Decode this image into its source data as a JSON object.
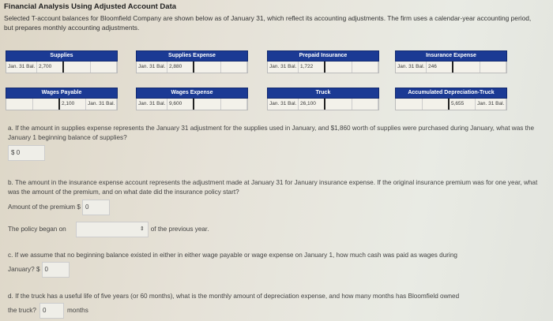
{
  "title": "Financial Analysis Using Adjusted Account Data",
  "intro": "Selected T-account balances for Bloomfield Company are shown below as of January 31, which reflect its accounting adjustments. The firm uses a calendar-year accounting period, but prepares monthly accounting adjustments.",
  "accounts": [
    {
      "name": "Supplies",
      "label": "Jan. 31 Bal.",
      "value": "2,700",
      "side": "debit"
    },
    {
      "name": "Supplies Expense",
      "label": "Jan. 31 Bal.",
      "value": "2,880",
      "side": "debit"
    },
    {
      "name": "Prepaid Insurance",
      "label": "Jan. 31 Bal.",
      "value": "1,722",
      "side": "debit"
    },
    {
      "name": "Insurance Expense",
      "label": "Jan. 31 Bal.",
      "value": "246",
      "side": "debit"
    },
    {
      "name": "Wages Payable",
      "label": "Jan. 31 Bal.",
      "value": "2,100",
      "side": "credit"
    },
    {
      "name": "Wages Expense",
      "label": "Jan. 31 Bal.",
      "value": "9,600",
      "side": "debit"
    },
    {
      "name": "Truck",
      "label": "Jan. 31 Bal.",
      "value": "26,100",
      "side": "debit"
    },
    {
      "name": "Accumulated Depreciation-Truck",
      "label": "Jan. 31 Bal.",
      "value": "5,655",
      "side": "credit"
    }
  ],
  "qa": {
    "text": "a. If the amount in supplies expense represents the January 31 adjustment for the supplies used in January, and $1,860 worth of supplies were purchased during January, what was the January 1 beginning balance of supplies?",
    "prefix": "$",
    "value": "0"
  },
  "qb": {
    "text": "b. The amount in the insurance expense account represents the adjustment made at January 31 for January insurance expense. If the original insurance premium was for one year, what was the amount of the premium, and on what date did the insurance policy start?",
    "premium_label": "Amount of the premium $",
    "premium_value": "0",
    "began_label": "The policy began on",
    "began_value": "",
    "suffix": "of the previous year."
  },
  "qc": {
    "text": "c. If we assume that no beginning balance existed in either in either wage payable or wage expense on January 1, how much cash was paid as wages during",
    "text2": "January? $",
    "value": "0"
  },
  "qd": {
    "text": "d. If the truck has a useful life of five years (or 60 months), what is the monthly amount of depreciation expense, and how many months has Bloomfield owned",
    "text2": "the truck?",
    "value": "0",
    "unit": "months"
  }
}
